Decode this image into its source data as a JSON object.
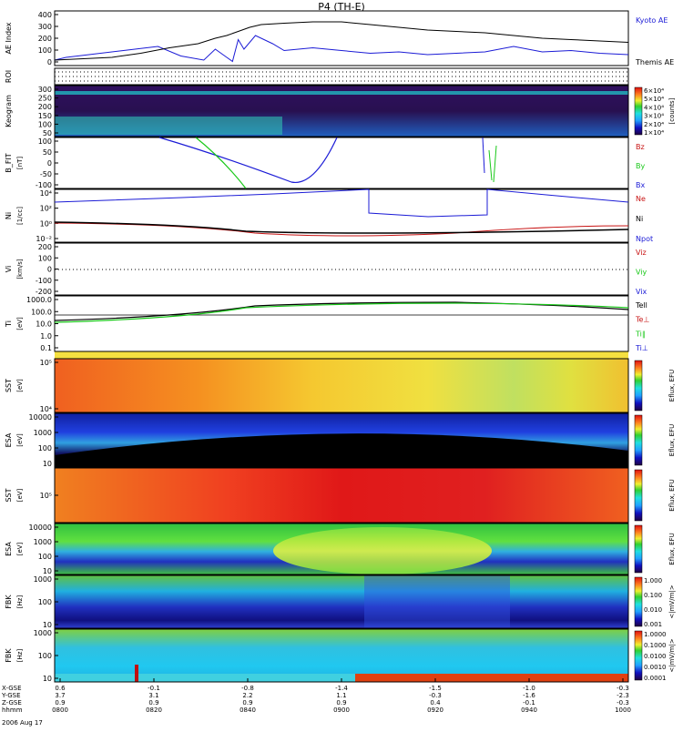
{
  "title": "P4 (TH-E)",
  "colors": {
    "black": "#000000",
    "blue": "#1b1bd6",
    "red": "#c81414",
    "green": "#19c819"
  },
  "chart_data": {
    "type": "line",
    "title": "P4 (TH-E)",
    "panels": [
      {
        "ylabel": "AE Index",
        "y_ticks": [
          "400",
          "300",
          "200",
          "100",
          "0"
        ],
        "legend": [
          "Kyoto AE",
          "Themis AE"
        ],
        "series": [
          {
            "name": "Kyoto AE",
            "color": "#1b1bd6",
            "x": [
              0,
              0.02,
              0.06,
              0.12,
              0.18,
              0.22,
              0.26,
              0.28,
              0.3,
              0.31,
              0.32,
              0.33,
              0.35,
              0.38,
              0.4,
              0.45,
              0.5,
              0.55,
              0.6,
              0.65,
              0.7,
              0.75,
              0.8,
              0.85,
              0.9,
              0.95,
              1.0
            ],
            "y": [
              40,
              60,
              80,
              110,
              140,
              70,
              40,
              120,
              60,
              30,
              190,
              120,
              220,
              160,
              110,
              130,
              110,
              90,
              100,
              80,
              90,
              100,
              140,
              100,
              110,
              90,
              80
            ]
          },
          {
            "name": "Themis AE",
            "color": "#000000",
            "x": [
              0,
              0.05,
              0.1,
              0.15,
              0.2,
              0.25,
              0.28,
              0.3,
              0.32,
              0.34,
              0.36,
              0.4,
              0.45,
              0.5,
              0.55,
              0.6,
              0.65,
              0.7,
              0.75,
              0.8,
              0.85,
              0.9,
              0.95,
              1.0
            ],
            "y": [
              40,
              50,
              60,
              90,
              130,
              160,
              200,
              220,
              250,
              280,
              300,
              310,
              320,
              320,
              300,
              280,
              260,
              250,
              240,
              220,
              200,
              190,
              180,
              170
            ]
          }
        ]
      },
      {
        "ylabel": "ROI",
        "y_ticks": []
      },
      {
        "ylabel": "Keogram",
        "y_ticks": [
          "300",
          "250",
          "200",
          "150",
          "100",
          "50"
        ],
        "colorbar": {
          "ticks": [
            "6×10⁴",
            "5×10⁴",
            "4×10⁴",
            "3×10⁴",
            "2×10⁴",
            "1×10⁴"
          ],
          "label": "[counts]"
        }
      },
      {
        "ylabel": "B_FIT",
        "unit": "[nT]",
        "y_ticks": [
          "100",
          "50",
          "0",
          "-50",
          "-100"
        ],
        "legend": [
          "Bz",
          "By",
          "Bx"
        ]
      },
      {
        "ylabel": "Ni",
        "unit": "[1/cc]",
        "y_ticks": [
          "10⁴",
          "10²",
          "10⁰",
          "10⁻²"
        ],
        "legend": [
          "Ne",
          "Ni",
          "Npot"
        ]
      },
      {
        "ylabel": "Vi",
        "unit": "[km/s]",
        "y_ticks": [
          "200",
          "100",
          "0",
          "-100",
          "-200"
        ],
        "legend": [
          "Viz",
          "Viy",
          "Vix"
        ]
      },
      {
        "ylabel": "Ti",
        "unit": "[eV]",
        "y_ticks": [
          "1000.0",
          "100.0",
          "10.0",
          "1.0",
          "0.1"
        ],
        "legend": [
          "Tell",
          "Te⊥",
          "Ti∥",
          "Ti⊥"
        ]
      },
      {
        "ylabel": "SST",
        "unit": "[eV]",
        "y_ticks": [
          "10⁵",
          "10⁴"
        ],
        "colorbar": {
          "label": "Eflux, EFU"
        }
      },
      {
        "ylabel": "ESA",
        "unit": "[eV]",
        "y_ticks": [
          "10000",
          "1000",
          "100",
          "10"
        ],
        "colorbar": {
          "label": "Eflux, EFU"
        }
      },
      {
        "ylabel": "SST",
        "unit": "[eV]",
        "y_ticks": [
          "10⁵"
        ],
        "colorbar": {
          "label": "Eflux, EFU"
        }
      },
      {
        "ylabel": "ESA",
        "unit": "[eV]",
        "y_ticks": [
          "10000",
          "1000",
          "100",
          "10"
        ],
        "colorbar": {
          "label": "Eflux, EFU"
        }
      },
      {
        "ylabel": "FBK",
        "unit": "[Hz]",
        "y_ticks": [
          "1000",
          "100",
          "10"
        ],
        "colorbar": {
          "ticks": [
            "1.000",
            "0.100",
            "0.010",
            "0.001"
          ],
          "label": "<|mV/m|>"
        }
      },
      {
        "ylabel": "FBK",
        "unit": "[Hz]",
        "y_ticks": [
          "1000",
          "100",
          "10"
        ],
        "colorbar": {
          "ticks": [
            "1.0000",
            "0.1000",
            "0.0100",
            "0.0010",
            "0.0001"
          ],
          "label": "<|mV/m|>"
        }
      }
    ],
    "x_axis": {
      "rows": [
        {
          "label": "X-GSE",
          "values": [
            "0.6",
            "-0.1",
            "-0.8",
            "-1.4",
            "-1.5",
            "-1.0",
            "-0.3"
          ]
        },
        {
          "label": "Y-GSE",
          "values": [
            "3.7",
            "3.1",
            "2.2",
            "1.1",
            "-0.3",
            "-1.6",
            "-2.3"
          ]
        },
        {
          "label": "Z-GSE",
          "values": [
            "0.9",
            "0.9",
            "0.9",
            "0.9",
            "0.4",
            "-0.1",
            "-0.3"
          ]
        },
        {
          "label": "hhmm",
          "values": [
            "0800",
            "0820",
            "0840",
            "0900",
            "0920",
            "0940",
            "1000"
          ]
        }
      ],
      "date": "2006 Aug 17"
    }
  }
}
